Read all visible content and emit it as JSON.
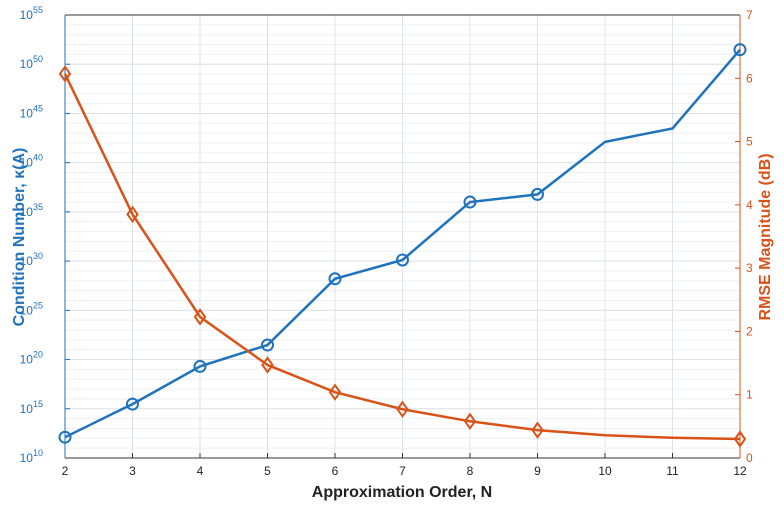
{
  "chart_data": {
    "type": "line",
    "x_label": "Approximation Order, N",
    "y_label": "Condition Number, κ(A)",
    "y2_label": "RMSE Magnitude (dB)",
    "x": [
      2,
      3,
      4,
      5,
      6,
      7,
      8,
      9,
      10,
      11,
      12
    ],
    "xlim": [
      2,
      12
    ],
    "xticks": [
      2,
      3,
      4,
      5,
      6,
      7,
      8,
      9,
      10,
      11,
      12
    ],
    "ylog": true,
    "ylim": [
      10000000000.0,
      1e+55
    ],
    "yticks": [
      {
        "value": 10000000000.0,
        "label": "10",
        "exponent": "10"
      },
      {
        "value": 1000000000000000.0,
        "label": "10",
        "exponent": "15"
      },
      {
        "value": 1e+20,
        "label": "10",
        "exponent": "20"
      },
      {
        "value": 1e+25,
        "label": "10",
        "exponent": "25"
      },
      {
        "value": 1e+30,
        "label": "10",
        "exponent": "30"
      },
      {
        "value": 1e+35,
        "label": "10",
        "exponent": "35"
      },
      {
        "value": 1e+40,
        "label": "10",
        "exponent": "40"
      },
      {
        "value": 1e+45,
        "label": "10",
        "exponent": "45"
      },
      {
        "value": 1e+50,
        "label": "10",
        "exponent": "50"
      },
      {
        "value": 1e+55,
        "label": "10",
        "exponent": "55"
      }
    ],
    "y2lim": [
      0,
      7
    ],
    "y2ticks": [
      0,
      1,
      2,
      3,
      4,
      5,
      6,
      7
    ],
    "grid": true,
    "markers_at": [
      2,
      3,
      4,
      5,
      6,
      7,
      8,
      9,
      12
    ],
    "series": [
      {
        "name": "Condition Number",
        "color": "#1f72bd",
        "marker": "circle",
        "values": [
          1300000000000.0,
          3000000000000000.0,
          2e+19,
          3e+21,
          1.6e+28,
          1.3e+30,
          1e+36,
          6e+36,
          1.3e+42,
          3e+43,
          3e+51
        ]
      },
      {
        "name": "RMSE Magnitude",
        "color": "#d95319",
        "marker": "diamond",
        "axis": "y2",
        "values": [
          6.07,
          3.85,
          2.23,
          1.47,
          1.04,
          0.77,
          0.58,
          0.44,
          0.36,
          0.32,
          0.3
        ]
      }
    ]
  }
}
